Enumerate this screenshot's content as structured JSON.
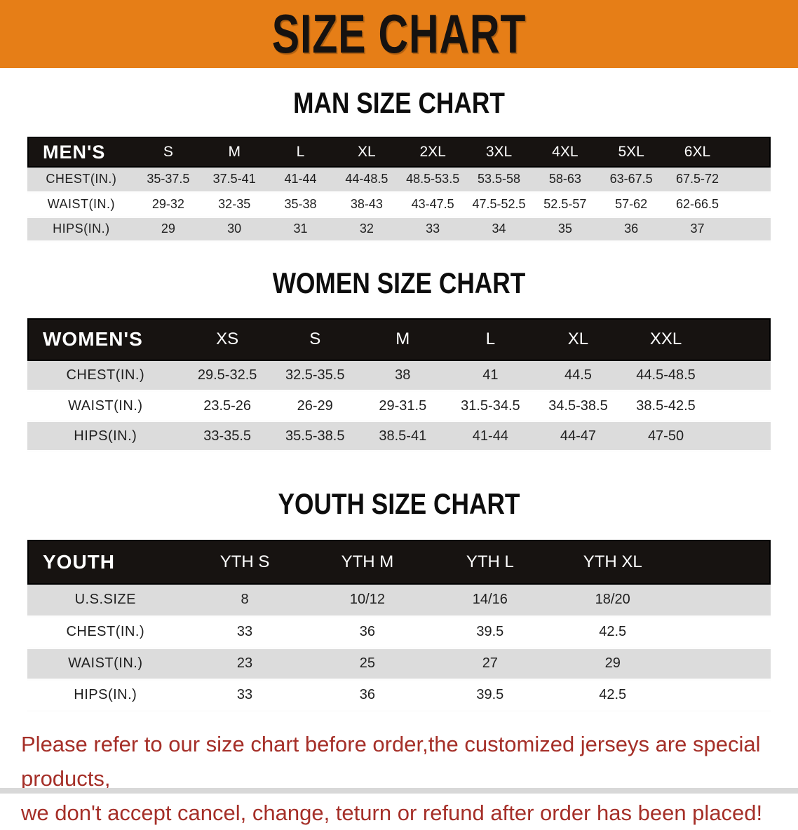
{
  "banner": {
    "title": "SIZE CHART"
  },
  "colors": {
    "banner_bg": "#e67e17",
    "header_bg": "#171311",
    "row_gray": "#dcdcdc",
    "disclaimer_red": "#a52f28"
  },
  "sections": [
    {
      "heading": "MAN SIZE CHART",
      "header_label": "MEN'S",
      "columns": [
        "S",
        "M",
        "L",
        "XL",
        "2XL",
        "3XL",
        "4XL",
        "5XL",
        "6XL"
      ],
      "rows": [
        {
          "label": "CHEST(IN.)",
          "values": [
            "35-37.5",
            "37.5-41",
            "41-44",
            "44-48.5",
            "48.5-53.5",
            "53.5-58",
            "58-63",
            "63-67.5",
            "67.5-72"
          ]
        },
        {
          "label": "WAIST(IN.)",
          "values": [
            "29-32",
            "32-35",
            "35-38",
            "38-43",
            "43-47.5",
            "47.5-52.5",
            "52.5-57",
            "57-62",
            "62-66.5"
          ]
        },
        {
          "label": "HIPS(IN.)",
          "values": [
            "29",
            "30",
            "31",
            "32",
            "33",
            "34",
            "35",
            "36",
            "37"
          ]
        }
      ],
      "layout": {
        "label_col": "14.5%",
        "data_col": "8.9%",
        "spacer_col": "5.4%"
      }
    },
    {
      "heading": "WOMEN SIZE CHART",
      "header_label": "WOMEN'S",
      "columns": [
        "XS",
        "S",
        "M",
        "L",
        "XL",
        "XXL"
      ],
      "rows": [
        {
          "label": "CHEST(IN.)",
          "values": [
            "29.5-32.5",
            "32.5-35.5",
            "38",
            "41",
            "44.5",
            "44.5-48.5"
          ]
        },
        {
          "label": "WAIST(IN.)",
          "values": [
            "23.5-26",
            "26-29",
            "29-31.5",
            "31.5-34.5",
            "34.5-38.5",
            "38.5-42.5"
          ]
        },
        {
          "label": "HIPS(IN.)",
          "values": [
            "33-35.5",
            "35.5-38.5",
            "38.5-41",
            "41-44",
            "44-47",
            "47-50"
          ]
        }
      ],
      "layout": {
        "label_col": "21%",
        "data_col": "11.8%",
        "spacer_col": "8.2%"
      }
    },
    {
      "heading": "YOUTH SIZE CHART",
      "header_label": "YOUTH",
      "columns": [
        "YTH S",
        "YTH M",
        "YTH L",
        "YTH XL"
      ],
      "rows": [
        {
          "label": "U.S.SIZE",
          "values": [
            "8",
            "10/12",
            "14/16",
            "18/20"
          ]
        },
        {
          "label": "CHEST(IN.)",
          "values": [
            "33",
            "36",
            "39.5",
            "42.5"
          ]
        },
        {
          "label": "WAIST(IN.)",
          "values": [
            "23",
            "25",
            "27",
            "29"
          ]
        },
        {
          "label": "HIPS(IN.)",
          "values": [
            "33",
            "36",
            "39.5",
            "42.5"
          ]
        }
      ],
      "layout": {
        "label_col": "21%",
        "data_col": "16.5%",
        "spacer_col": "13%"
      }
    }
  ],
  "disclaimer": {
    "lines": [
      "Please refer to our size chart before order,the customized jerseys are special products,",
      "we don't accept cancel, change, teturn or refund after order has been placed!"
    ]
  }
}
